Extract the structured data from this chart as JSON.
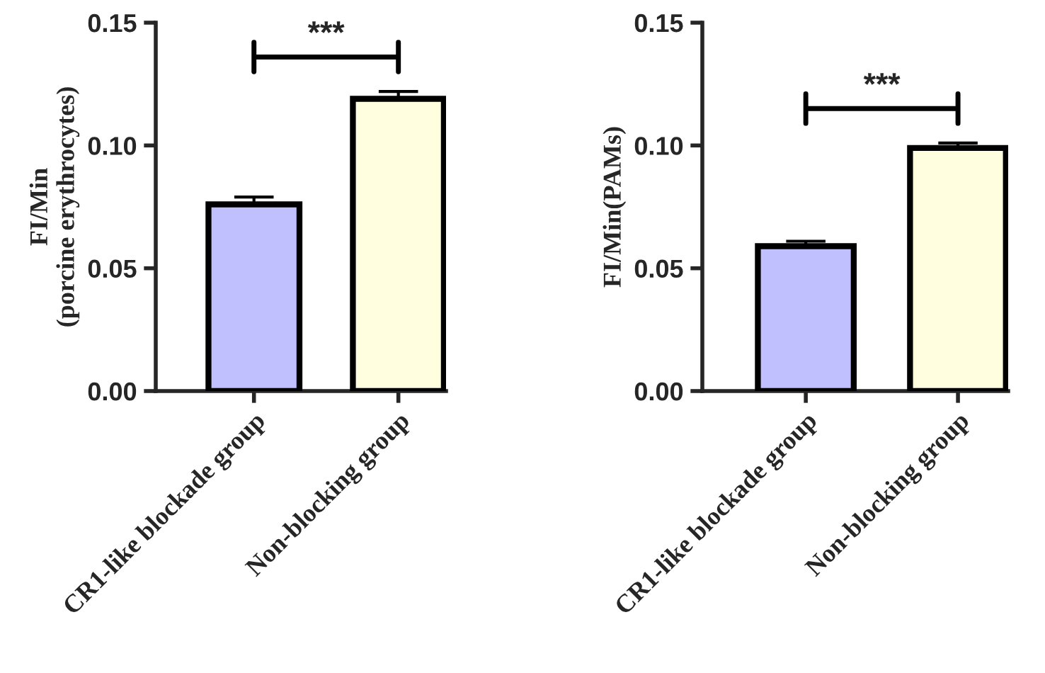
{
  "chart_data": [
    {
      "type": "bar",
      "ylabel": "FI/Min\n(porcine erythrocytes)",
      "categories": [
        "CR1-like blockade group",
        "Non-blocking group"
      ],
      "values": [
        0.076,
        0.119
      ],
      "errors": [
        0.003,
        0.003
      ],
      "colors": [
        "#c0c0ff",
        "#ffffe0"
      ],
      "ylim": [
        0,
        0.15
      ],
      "yticks": [
        {
          "value": 0,
          "label": "0.00"
        },
        {
          "value": 0.05,
          "label": "0.05"
        },
        {
          "value": 0.1,
          "label": "0.10"
        },
        {
          "value": 0.15,
          "label": "0.15"
        }
      ],
      "annotations": [
        "***"
      ],
      "grid": false,
      "legend": false
    },
    {
      "type": "bar",
      "ylabel": "FI/Min(PAMs)",
      "categories": [
        "CR1-like blockade group",
        "Non-blocking group"
      ],
      "values": [
        0.059,
        0.099
      ],
      "errors": [
        0.002,
        0.002
      ],
      "colors": [
        "#c0c0ff",
        "#ffffe0"
      ],
      "ylim": [
        0,
        0.15
      ],
      "yticks": [
        {
          "value": 0,
          "label": "0.00"
        },
        {
          "value": 0.05,
          "label": "0.05"
        },
        {
          "value": 0.1,
          "label": "0.10"
        },
        {
          "value": 0.15,
          "label": "0.15"
        }
      ],
      "annotations": [
        "***"
      ],
      "grid": false,
      "legend": false
    }
  ]
}
